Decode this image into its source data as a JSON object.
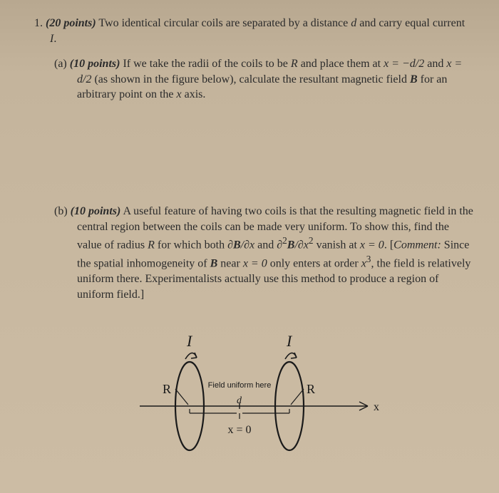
{
  "problem": {
    "number": "1.",
    "points": "(20 points)",
    "stem": "Two identical circular coils are separated by a distance ",
    "d": "d",
    "stem2": " and carry equal current ",
    "I": "I",
    "period": "."
  },
  "partA": {
    "label": "(a)",
    "points": "(10 points)",
    "t1": " If we take the radii of the coils to be ",
    "R": "R",
    "t2": " and place them at ",
    "eq1": "x = −d/2",
    "t3": " and ",
    "eq2": "x = d/2",
    "t4": " (as shown in the figure below), calculate the resultant magnetic field ",
    "B": "B",
    "t5": " for an arbitrary point on the ",
    "x": "x",
    "t6": " axis."
  },
  "partB": {
    "label": "(b)",
    "points": "(10 points)",
    "t1": " A useful feature of having two coils is that the resulting magnetic field in the central region between the coils can be made very uniform. To show this, find the value of radius ",
    "R": "R",
    "t2": " for which both ",
    "d1a": "∂",
    "d1b": "B",
    "d1c": "/∂x",
    "and": " and ",
    "d2a": "∂",
    "d2sup": "2",
    "d2b": "B",
    "d2c": "/∂x",
    "d2sup2": "2",
    "t3": " vanish at ",
    "eq": "x = 0",
    "t4": ". [",
    "comment_label": "Comment:",
    "comment": " Since the spatial inhomogeneity of ",
    "B2": "B",
    "comment2": " near ",
    "eq2": "x = 0",
    "comment3": " only enters at order ",
    "x3a": "x",
    "x3sup": "3",
    "comment4": ", the field is relatively uniform there. Experimentalists actually use this method to produce a region of uniform field.]"
  },
  "figure": {
    "I_left": "I",
    "I_right": "I",
    "R_left": "R",
    "R_right": "R",
    "mid_label": "Field uniform here",
    "x_axis": "x",
    "x_zero": "x = 0",
    "d_brace": "d",
    "stroke": "#1a1a1a",
    "text_color": "#1a1a1a",
    "font_family": "Times New Roman, serif",
    "I_fontsize": 22,
    "R_fontsize": 18,
    "mid_fontsize": 11,
    "axis_fontsize": 16,
    "coil_stroke_width": 2.2,
    "axis_stroke_width": 1.4
  }
}
